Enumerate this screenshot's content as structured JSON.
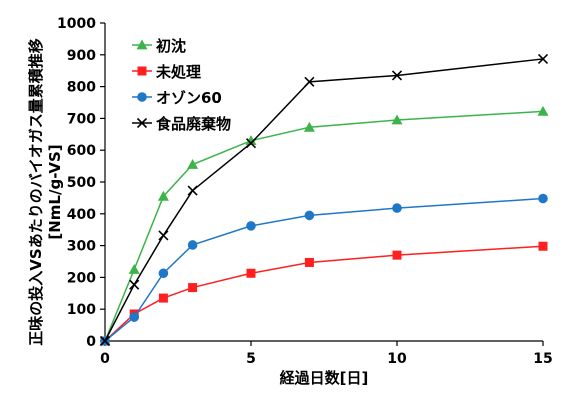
{
  "chart_data": {
    "type": "line",
    "xlabel": "経過日数[日]",
    "ylabel_line1": "正味の投入VSあたりのバイオガス量累積推移",
    "ylabel_line2": "[NmL/g-VS]",
    "xlim": [
      0,
      15
    ],
    "ylim": [
      0,
      1000
    ],
    "xticks": [
      "0",
      "5",
      "10",
      "15"
    ],
    "yticks": [
      "0",
      "100",
      "200",
      "300",
      "400",
      "500",
      "600",
      "700",
      "800",
      "900",
      "1000"
    ],
    "grid": false,
    "legend_position": "top-left",
    "series": [
      {
        "name": "初沈",
        "marker": "triangle",
        "color": "#3cb44b",
        "x": [
          0,
          1,
          2,
          3,
          5,
          7,
          10,
          15
        ],
        "y": [
          0,
          225,
          455,
          555,
          630,
          672,
          695,
          722
        ]
      },
      {
        "name": "未処理",
        "marker": "square",
        "color": "#ff1f1f",
        "x": [
          0,
          1,
          2,
          3,
          5,
          7,
          10,
          15
        ],
        "y": [
          0,
          85,
          135,
          168,
          213,
          247,
          270,
          298
        ]
      },
      {
        "name": "オゾン60",
        "marker": "circle",
        "color": "#1f77c8",
        "x": [
          0,
          1,
          2,
          3,
          5,
          7,
          10,
          15
        ],
        "y": [
          0,
          75,
          213,
          302,
          362,
          395,
          418,
          448
        ]
      },
      {
        "name": "食品廃棄物",
        "marker": "x",
        "color": "#000000",
        "x": [
          0,
          1,
          2,
          3,
          5,
          7,
          10,
          15
        ],
        "y": [
          0,
          177,
          332,
          473,
          622,
          815,
          835,
          887
        ]
      }
    ]
  }
}
